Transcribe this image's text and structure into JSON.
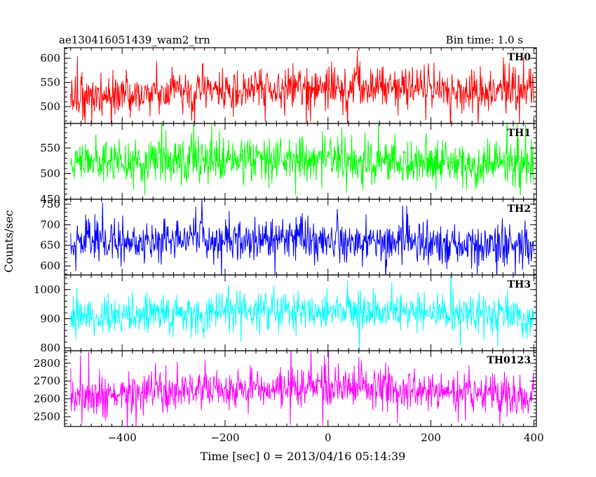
{
  "header": {
    "title": "ae130416051439_wam2_trn",
    "bin_time": "Bin time: 1.0 s"
  },
  "chart_data": {
    "type": "line",
    "title": "ae130416051439_wam2_trn",
    "xlabel": "Time [sec] 0 = 2013/04/16 05:14:39",
    "ylabel": "Counts/sec",
    "xlim": [
      -512,
      405
    ],
    "x_ticks": [
      -400,
      -200,
      0,
      200,
      400
    ],
    "x_tick_labels": [
      "−400",
      "−200",
      "0",
      "200",
      "400"
    ],
    "x_start": -500,
    "x_end": 400,
    "x_step": 1.0,
    "grid": false,
    "legend": "none",
    "panels": [
      {
        "name": "TH0",
        "color": "#ff0000",
        "ylim": [
          465,
          622
        ],
        "y_ticks": [
          500,
          550,
          600
        ],
        "y_tick_labels": [
          "500",
          "550",
          "600"
        ],
        "mean": 532,
        "noise": 22,
        "spike_scale": 1.8,
        "trend": [
          [
            -500,
            522
          ],
          [
            -300,
            530
          ],
          [
            -100,
            536
          ],
          [
            100,
            540
          ],
          [
            300,
            532
          ],
          [
            400,
            530
          ]
        ]
      },
      {
        "name": "TH1",
        "color": "#00ff00",
        "ylim": [
          450,
          598
        ],
        "y_ticks": [
          450,
          500,
          550
        ],
        "y_tick_labels": [
          "450",
          "500",
          "550"
        ],
        "mean": 524,
        "noise": 22,
        "spike_scale": 1.8,
        "trend": [
          [
            -500,
            524
          ],
          [
            -300,
            526
          ],
          [
            -100,
            528
          ],
          [
            100,
            522
          ],
          [
            300,
            518
          ],
          [
            400,
            515
          ]
        ]
      },
      {
        "name": "TH2",
        "color": "#0000ff",
        "ylim": [
          578,
          762
        ],
        "y_ticks": [
          600,
          650,
          700,
          750
        ],
        "y_tick_labels": [
          "600",
          "650",
          "700",
          "750"
        ],
        "mean": 662,
        "noise": 25,
        "spike_scale": 1.9,
        "trend": [
          [
            -500,
            660
          ],
          [
            -300,
            665
          ],
          [
            -100,
            667
          ],
          [
            100,
            660
          ],
          [
            300,
            652
          ],
          [
            400,
            648
          ]
        ]
      },
      {
        "name": "TH3",
        "color": "#00ffff",
        "ylim": [
          790,
          1050
        ],
        "y_ticks": [
          800,
          900,
          1000
        ],
        "y_tick_labels": [
          "800",
          "900",
          "1000"
        ],
        "mean": 915,
        "noise": 32,
        "spike_scale": 2.0,
        "trend": [
          [
            -500,
            910
          ],
          [
            -300,
            915
          ],
          [
            -100,
            925
          ],
          [
            100,
            922
          ],
          [
            300,
            912
          ],
          [
            400,
            908
          ]
        ]
      },
      {
        "name": "TH0123",
        "color": "#ff00ff",
        "ylim": [
          2445,
          2870
        ],
        "y_ticks": [
          2500,
          2600,
          2700,
          2800
        ],
        "y_tick_labels": [
          "2500",
          "2600",
          "2700",
          "2800"
        ],
        "mean": 2640,
        "noise": 55,
        "spike_scale": 2.0,
        "trend": [
          [
            -500,
            2610
          ],
          [
            -300,
            2640
          ],
          [
            -100,
            2665
          ],
          [
            100,
            2660
          ],
          [
            300,
            2625
          ],
          [
            400,
            2610
          ]
        ]
      }
    ]
  }
}
